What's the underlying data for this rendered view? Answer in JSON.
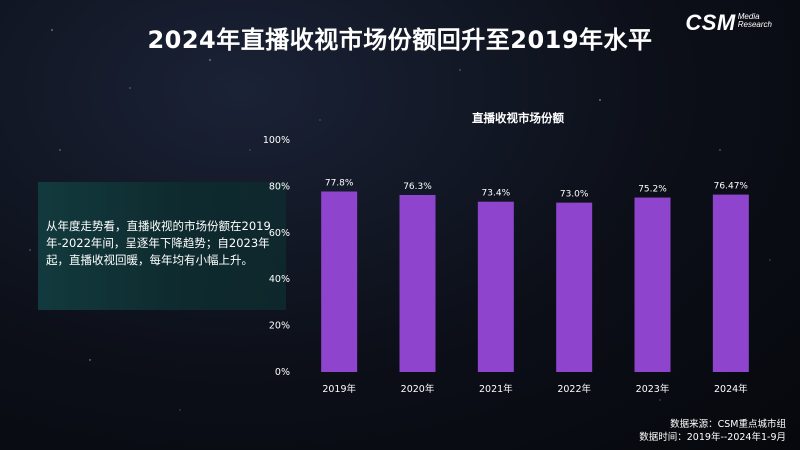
{
  "header": {
    "title": "2024年直播收视市场份额回升至2019年水平",
    "logo_main": "CSM",
    "logo_sub_1": "Media",
    "logo_sub_2": "Research"
  },
  "side_note": {
    "text": "从年度走势看，直播收视的市场份额在2019年-2022年间，呈逐年下降趋势；自2023年起，直播收视回暖，每年均有小幅上升。"
  },
  "footer": {
    "source": "数据来源：CSM重点城市组",
    "period": "数据时间：2019年--2024年1-9月"
  },
  "colors": {
    "bar": "#8e44cc",
    "panel": "#123a3e"
  },
  "chart_data": {
    "type": "bar",
    "title": "直播收视市场份额",
    "categories": [
      "2019年",
      "2020年",
      "2021年",
      "2022年",
      "2023年",
      "2024年"
    ],
    "values": [
      77.8,
      76.3,
      73.4,
      73.0,
      75.2,
      76.47
    ],
    "data_labels": [
      "77.8%",
      "76.3%",
      "73.4%",
      "73.0%",
      "75.2%",
      "76.47%"
    ],
    "yticks": [
      0,
      20,
      40,
      60,
      80,
      100
    ],
    "ytick_labels": [
      "0%",
      "20%",
      "40%",
      "60%",
      "80%",
      "100%"
    ],
    "ylim": [
      0,
      100
    ],
    "grid": false,
    "legend": "none",
    "xlabel": "",
    "ylabel": ""
  }
}
